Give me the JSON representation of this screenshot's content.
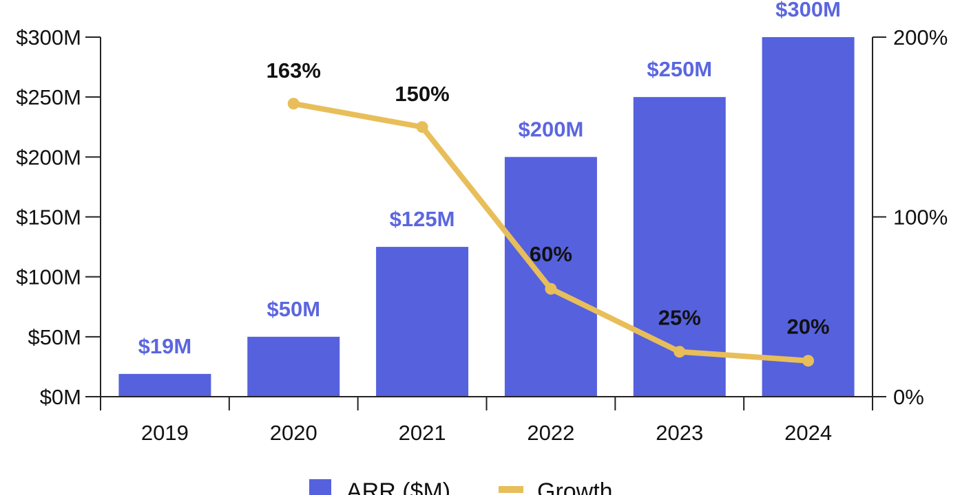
{
  "chart_data": {
    "type": "bar",
    "categories": [
      "2019",
      "2020",
      "2021",
      "2022",
      "2023",
      "2024"
    ],
    "series": [
      {
        "name": "ARR ($M)",
        "type": "bar",
        "axis": "left",
        "values": [
          19,
          50,
          125,
          200,
          250,
          300
        ],
        "labels": [
          "$19M",
          "$50M",
          "$125M",
          "$200M",
          "$250M",
          "$300M"
        ],
        "color": "#5661DD",
        "label_color": "#5B66E0"
      },
      {
        "name": "Growth",
        "type": "line",
        "axis": "right",
        "values": [
          null,
          163,
          150,
          60,
          25,
          20
        ],
        "labels": [
          "",
          "163%",
          "150%",
          "60%",
          "25%",
          "20%"
        ],
        "color": "#E8BE5A"
      }
    ],
    "y_left": {
      "ylim": [
        0,
        300
      ],
      "ticks": [
        0,
        50,
        100,
        150,
        200,
        250,
        300
      ],
      "tick_labels": [
        "$0M",
        "$50M",
        "$100M",
        "$150M",
        "$200M",
        "$250M",
        "$300M"
      ]
    },
    "y_right": {
      "ylim": [
        0,
        200
      ],
      "ticks": [
        0,
        100,
        200
      ],
      "tick_labels": [
        "0%",
        "100%",
        "200%"
      ]
    },
    "grid": false,
    "legend": {
      "placement": "bottom-center",
      "entries": [
        "ARR ($M)",
        "Growth"
      ]
    }
  }
}
